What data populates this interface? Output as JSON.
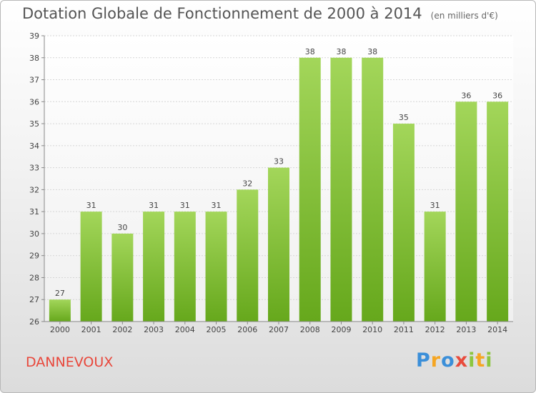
{
  "chart_data": {
    "type": "bar",
    "title": "Dotation Globale de Fonctionnement de 2000 à 2014",
    "subtitle": "(en milliers d'€)",
    "categories": [
      "2000",
      "2001",
      "2002",
      "2003",
      "2004",
      "2005",
      "2006",
      "2007",
      "2008",
      "2009",
      "2010",
      "2011",
      "2012",
      "2013",
      "2014"
    ],
    "values": [
      27,
      31,
      30,
      31,
      31,
      31,
      32,
      33,
      38,
      38,
      38,
      35,
      31,
      36,
      36
    ],
    "ylim": [
      26,
      39
    ],
    "yticks": [
      26,
      27,
      28,
      29,
      30,
      31,
      32,
      33,
      34,
      35,
      36,
      37,
      38,
      39
    ],
    "grid": true,
    "bar_color": "#8cc63f"
  },
  "commune": "DANNEVOUX",
  "logo": {
    "letters": [
      "P",
      "r",
      "o",
      "x",
      "i",
      "t",
      "i"
    ],
    "colors": [
      "#3b8fd9",
      "#f5a623",
      "#3b8fd9",
      "#e84b3c",
      "#8cc63f",
      "#f5a623",
      "#8cc63f"
    ]
  }
}
